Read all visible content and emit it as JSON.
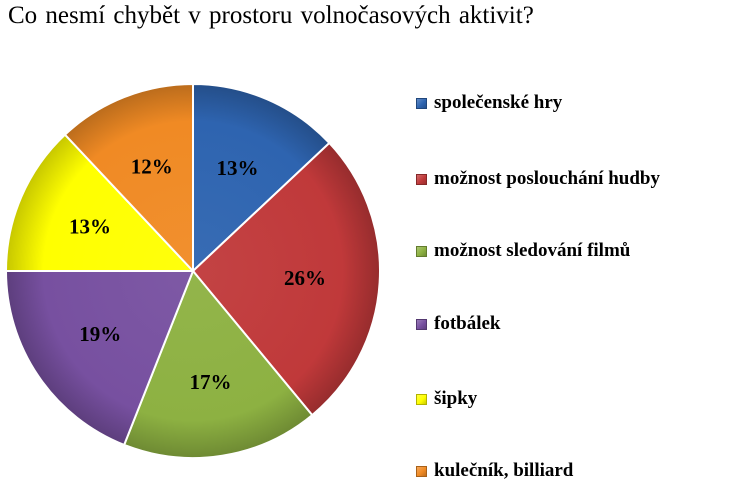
{
  "chart_data": {
    "type": "pie",
    "title": "Co nesmí chybět v prostoru volnočasových  aktivit?",
    "legend_position": "right",
    "slices": [
      {
        "label": "společenské hry",
        "value": 13,
        "value_label": "13%",
        "color": "#2E64B0"
      },
      {
        "label": "možnost poslouchání hudby",
        "value": 26,
        "value_label": "26%",
        "color": "#C0393A"
      },
      {
        "label": "možnost sledování filmů",
        "value": 17,
        "value_label": "17%",
        "color": "#8DB142"
      },
      {
        "label": "fotbálek",
        "value": 19,
        "value_label": "19%",
        "color": "#7750A0"
      },
      {
        "label": "šipky",
        "value": 13,
        "value_label": "13%",
        "color": "#FFFF00"
      },
      {
        "label": "kulečník, billiard",
        "value": 12,
        "value_label": "12%",
        "color": "#F08A24"
      }
    ]
  }
}
